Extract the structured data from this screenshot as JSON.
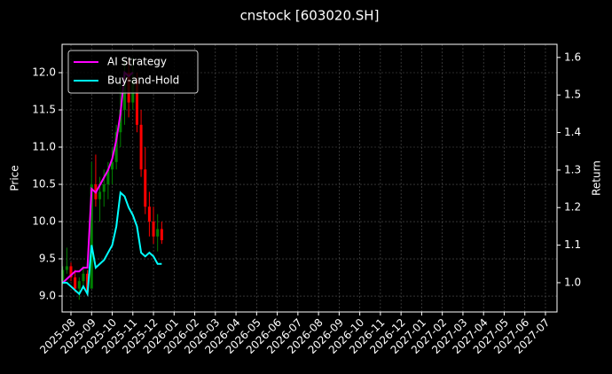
{
  "chart_data": {
    "type": "candlestick",
    "title": "cnstock [603020.SH]",
    "ylabel": "Price",
    "y2label": "Return",
    "up_color": "#008000",
    "down_color": "#ff0000",
    "x": [
      -0.4,
      -0.2,
      0.0,
      0.2,
      0.4,
      0.6,
      0.8,
      1.0,
      1.2,
      1.4,
      1.6,
      1.8,
      2.0,
      2.2,
      2.4,
      2.6,
      2.8,
      3.0,
      3.2,
      3.4,
      3.6,
      3.8,
      4.0,
      4.2,
      4.4
    ],
    "open": [
      9.2,
      9.35,
      9.4,
      9.25,
      9.1,
      9.2,
      9.3,
      9.1,
      10.5,
      10.3,
      10.4,
      10.5,
      10.7,
      10.8,
      11.2,
      11.5,
      12.0,
      11.6,
      11.9,
      11.3,
      10.7,
      10.2,
      10.0,
      9.8,
      9.9
    ],
    "high": [
      9.4,
      9.65,
      9.45,
      9.35,
      9.25,
      9.4,
      9.35,
      10.8,
      10.9,
      10.6,
      10.7,
      10.8,
      11.0,
      11.3,
      11.9,
      12.2,
      12.2,
      12.2,
      12.0,
      11.5,
      11.0,
      10.4,
      10.2,
      10.1,
      10.0
    ],
    "low": [
      9.15,
      9.3,
      9.2,
      9.05,
      8.95,
      9.1,
      9.0,
      9.1,
      10.2,
      10.0,
      10.2,
      10.3,
      10.5,
      10.7,
      11.0,
      11.3,
      11.4,
      11.5,
      11.2,
      10.6,
      10.1,
      9.8,
      9.7,
      9.6,
      9.7
    ],
    "close": [
      9.35,
      9.4,
      9.25,
      9.1,
      9.2,
      9.3,
      9.05,
      10.5,
      10.3,
      10.4,
      10.5,
      10.7,
      10.8,
      11.2,
      11.5,
      12.0,
      11.6,
      11.9,
      11.3,
      10.7,
      10.2,
      10.0,
      9.8,
      9.9,
      9.75
    ],
    "series": [
      {
        "name": "AI Strategy",
        "color": "#ff00ff",
        "axis": "y2",
        "values": [
          1.0,
          1.01,
          1.02,
          1.03,
          1.03,
          1.04,
          1.04,
          1.25,
          1.24,
          1.26,
          1.28,
          1.3,
          1.33,
          1.38,
          1.45,
          1.56,
          1.55,
          1.56,
          null,
          null,
          null,
          null,
          null,
          null,
          null
        ]
      },
      {
        "name": "Buy-and-Hold",
        "color": "#00ffff",
        "axis": "y2",
        "values": [
          1.0,
          1.0,
          0.99,
          0.98,
          0.97,
          0.99,
          0.97,
          1.1,
          1.04,
          1.05,
          1.06,
          1.08,
          1.1,
          1.15,
          1.24,
          1.23,
          1.2,
          1.18,
          1.15,
          1.08,
          1.07,
          1.08,
          1.07,
          1.05,
          1.05
        ]
      }
    ],
    "xlim": [
      -0.43,
      23.56
    ],
    "xticks": [
      {
        "value": 0,
        "label": "2025-08"
      },
      {
        "value": 1,
        "label": "2025-09"
      },
      {
        "value": 2,
        "label": "2025-10"
      },
      {
        "value": 3,
        "label": "2025-11"
      },
      {
        "value": 4,
        "label": "2025-12"
      },
      {
        "value": 5,
        "label": "2026-01"
      },
      {
        "value": 6,
        "label": "2026-02"
      },
      {
        "value": 7,
        "label": "2026-03"
      },
      {
        "value": 8,
        "label": "2026-04"
      },
      {
        "value": 9,
        "label": "2026-05"
      },
      {
        "value": 10,
        "label": "2026-06"
      },
      {
        "value": 11,
        "label": "2026-07"
      },
      {
        "value": 12,
        "label": "2026-08"
      },
      {
        "value": 13,
        "label": "2026-09"
      },
      {
        "value": 14,
        "label": "2026-10"
      },
      {
        "value": 15,
        "label": "2026-11"
      },
      {
        "value": 16,
        "label": "2026-12"
      },
      {
        "value": 17,
        "label": "2027-01"
      },
      {
        "value": 18,
        "label": "2027-02"
      },
      {
        "value": 19,
        "label": "2027-03"
      },
      {
        "value": 20,
        "label": "2027-04"
      },
      {
        "value": 21,
        "label": "2027-05"
      },
      {
        "value": 22,
        "label": "2027-06"
      },
      {
        "value": 23,
        "label": "2027-07"
      }
    ],
    "ylim": [
      8.786,
      12.381
    ],
    "yticks": [
      {
        "value": 9,
        "label": "9.0"
      },
      9.5,
      {
        "value": 10,
        "label": "10.0"
      },
      10.5,
      {
        "value": 11,
        "label": "11.0"
      },
      11.5,
      {
        "value": 12,
        "label": "12.0"
      }
    ],
    "y2lim": [
      0.922,
      1.635
    ],
    "y2ticks": [
      {
        "value": 1,
        "label": "1.0"
      },
      1.1,
      1.2,
      1.3,
      1.4,
      1.5,
      1.6
    ],
    "grid": true,
    "legend": "upper left"
  }
}
